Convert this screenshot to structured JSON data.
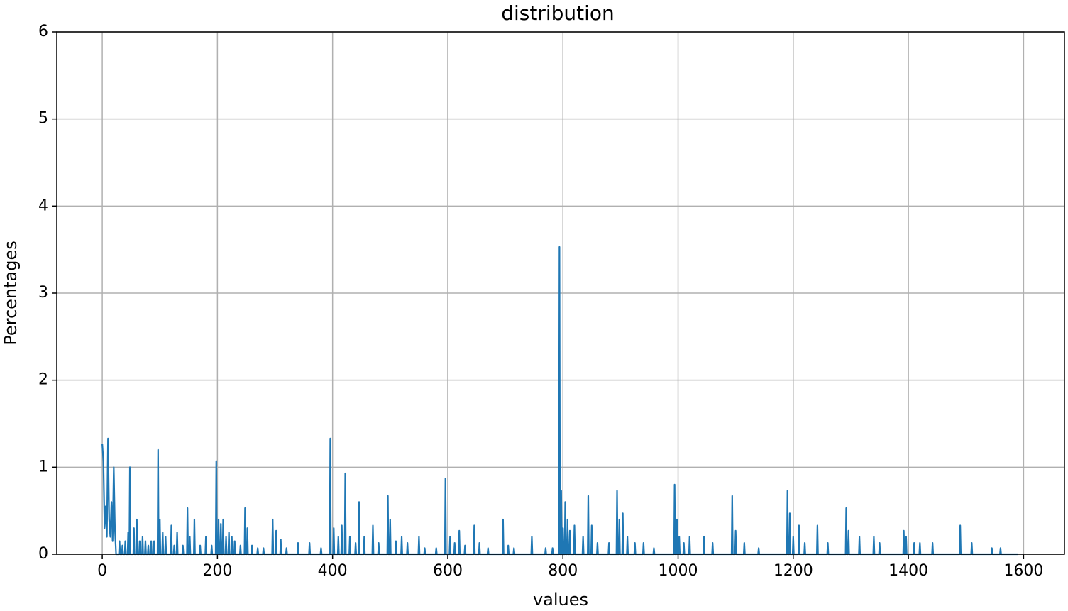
{
  "chart_data": {
    "type": "line",
    "title": "distribution",
    "x_label": "values",
    "y_label": "Percentages",
    "xlim": [
      -79,
      1671
    ],
    "ylim": [
      0,
      6
    ],
    "xticks": [
      0,
      200,
      400,
      600,
      800,
      1000,
      1200,
      1400,
      1600
    ],
    "yticks": [
      0,
      1,
      2,
      3,
      4,
      5,
      6
    ],
    "grid": true,
    "x": [
      0,
      2,
      4,
      6,
      8,
      10,
      12,
      14,
      16,
      18,
      20,
      22,
      24,
      29,
      30,
      31,
      34,
      35,
      36,
      39,
      40,
      41,
      44,
      45,
      46,
      47,
      48,
      49,
      54,
      55,
      56,
      59,
      60,
      61,
      64,
      65,
      66,
      69,
      70,
      71,
      74,
      75,
      76,
      79,
      80,
      81,
      84,
      85,
      86,
      89,
      90,
      91,
      96,
      97,
      98,
      99,
      100,
      101,
      104,
      105,
      106,
      109,
      110,
      111,
      119,
      120,
      121,
      124,
      125,
      126,
      129,
      130,
      131,
      139,
      140,
      141,
      147,
      148,
      149,
      151,
      152,
      153,
      159,
      160,
      161,
      169,
      170,
      171,
      179,
      180,
      181,
      189,
      190,
      191,
      197,
      198,
      199,
      201,
      202,
      203,
      205,
      206,
      207,
      209,
      210,
      211,
      214,
      215,
      216,
      219,
      220,
      221,
      224,
      225,
      226,
      229,
      230,
      231,
      239,
      240,
      241,
      247,
      248,
      249,
      251,
      252,
      253,
      259,
      260,
      261,
      269,
      270,
      271,
      279,
      280,
      281,
      295,
      296,
      297,
      301,
      302,
      303,
      309,
      310,
      311,
      319,
      320,
      321,
      339,
      340,
      341,
      359,
      360,
      361,
      379,
      380,
      381,
      395,
      396,
      397,
      401,
      402,
      403,
      409,
      410,
      411,
      415,
      416,
      417,
      421,
      422,
      423,
      429,
      430,
      431,
      439,
      440,
      441,
      445,
      446,
      447,
      454,
      455,
      456,
      469,
      470,
      471,
      479,
      480,
      481,
      495,
      496,
      497,
      499,
      500,
      501,
      509,
      510,
      511,
      519,
      520,
      521,
      529,
      530,
      531,
      549,
      550,
      551,
      559,
      560,
      561,
      579,
      580,
      581,
      595,
      596,
      597,
      603,
      604,
      605,
      611,
      612,
      613,
      619,
      620,
      621,
      629,
      630,
      631,
      645,
      646,
      647,
      654,
      655,
      656,
      669,
      670,
      671,
      695,
      696,
      697,
      704,
      705,
      706,
      714,
      715,
      716,
      745,
      746,
      747,
      769,
      770,
      771,
      781,
      782,
      783,
      793,
      794,
      795,
      796,
      797,
      798,
      799,
      800,
      801,
      803,
      804,
      805,
      807,
      808,
      809,
      811,
      812,
      813,
      819,
      820,
      821,
      834,
      835,
      836,
      843,
      844,
      845,
      849,
      850,
      851,
      859,
      860,
      861,
      879,
      880,
      881,
      893,
      894,
      895,
      897,
      898,
      899,
      903,
      904,
      905,
      911,
      912,
      913,
      924,
      925,
      926,
      939,
      940,
      941,
      957,
      958,
      959,
      993,
      994,
      995,
      997,
      998,
      999,
      1001,
      1002,
      1003,
      1009,
      1010,
      1011,
      1019,
      1020,
      1021,
      1044,
      1045,
      1046,
      1059,
      1060,
      1061,
      1093,
      1094,
      1095,
      1099,
      1100,
      1101,
      1114,
      1115,
      1116,
      1139,
      1140,
      1141,
      1189,
      1190,
      1191,
      1193,
      1194,
      1195,
      1199,
      1200,
      1201,
      1209,
      1210,
      1211,
      1219,
      1220,
      1221,
      1241,
      1242,
      1243,
      1259,
      1260,
      1261,
      1291,
      1292,
      1293,
      1295,
      1296,
      1297,
      1314,
      1315,
      1316,
      1339,
      1340,
      1341,
      1349,
      1350,
      1351,
      1391,
      1392,
      1393,
      1395,
      1396,
      1397,
      1409,
      1410,
      1411,
      1419,
      1420,
      1421,
      1441,
      1442,
      1443,
      1489,
      1490,
      1491,
      1509,
      1510,
      1511,
      1544,
      1545,
      1546,
      1559,
      1560,
      1561,
      1590
    ],
    "series": [
      {
        "color": "#1f77b4",
        "values": [
          1.27,
          1.07,
          0.3,
          0.55,
          0.2,
          1.33,
          0.4,
          0.2,
          0.6,
          0.15,
          1.0,
          0.3,
          0,
          0,
          0.15,
          0,
          0,
          0.1,
          0,
          0,
          0.15,
          0,
          0,
          0.25,
          0,
          0,
          1.0,
          0,
          0,
          0.3,
          0,
          0,
          0.4,
          0,
          0,
          0.15,
          0,
          0,
          0.2,
          0,
          0,
          0.15,
          0,
          0,
          0.1,
          0,
          0,
          0.15,
          0,
          0,
          0.15,
          0,
          0,
          1.2,
          0,
          0,
          0.4,
          0,
          0,
          0.25,
          0,
          0,
          0.2,
          0,
          0,
          0.33,
          0,
          0,
          0.1,
          0,
          0,
          0.25,
          0,
          0,
          0.1,
          0,
          0,
          0.53,
          0,
          0,
          0.2,
          0,
          0,
          0.4,
          0,
          0,
          0.1,
          0,
          0,
          0.2,
          0,
          0,
          0.1,
          0,
          0,
          1.07,
          0,
          0,
          0.4,
          0,
          0,
          0.35,
          0,
          0,
          0.4,
          0,
          0,
          0.2,
          0,
          0,
          0.25,
          0,
          0,
          0.2,
          0,
          0,
          0.15,
          0,
          0,
          0.1,
          0,
          0,
          0.53,
          0,
          0,
          0.3,
          0,
          0,
          0.1,
          0,
          0,
          0.07,
          0,
          0,
          0.07,
          0,
          0,
          0.4,
          0,
          0,
          0.27,
          0,
          0,
          0.17,
          0,
          0,
          0.07,
          0,
          0,
          0.13,
          0,
          0,
          0.13,
          0,
          0,
          0.07,
          0,
          0,
          1.33,
          0,
          0,
          0.3,
          0,
          0,
          0.2,
          0,
          0,
          0.33,
          0,
          0,
          0.93,
          0,
          0,
          0.2,
          0,
          0,
          0.13,
          0,
          0,
          0.6,
          0,
          0,
          0.2,
          0,
          0,
          0.33,
          0,
          0,
          0.13,
          0,
          0,
          0.67,
          0,
          0,
          0.4,
          0,
          0,
          0.15,
          0,
          0,
          0.2,
          0,
          0,
          0.13,
          0,
          0,
          0.2,
          0,
          0,
          0.07,
          0,
          0,
          0.07,
          0,
          0,
          0.87,
          0,
          0,
          0.2,
          0,
          0,
          0.13,
          0,
          0,
          0.27,
          0,
          0,
          0.1,
          0,
          0,
          0.33,
          0,
          0,
          0.13,
          0,
          0,
          0.07,
          0,
          0,
          0.4,
          0,
          0,
          0.1,
          0,
          0,
          0.07,
          0,
          0,
          0.2,
          0,
          0,
          0.07,
          0,
          0,
          0.07,
          0,
          0,
          3.53,
          0,
          0,
          0.73,
          0,
          0,
          0.3,
          0,
          0,
          0.6,
          0,
          0,
          0.4,
          0,
          0,
          0.27,
          0,
          0,
          0.33,
          0,
          0,
          0.2,
          0,
          0,
          0.67,
          0,
          0,
          0.33,
          0,
          0,
          0.13,
          0,
          0,
          0.13,
          0,
          0,
          0.73,
          0,
          0,
          0.4,
          0,
          0,
          0.47,
          0,
          0,
          0.2,
          0,
          0,
          0.13,
          0,
          0,
          0.13,
          0,
          0,
          0.07,
          0,
          0,
          0.8,
          0,
          0,
          0.4,
          0,
          0,
          0.2,
          0,
          0,
          0.13,
          0,
          0,
          0.2,
          0,
          0,
          0.2,
          0,
          0,
          0.13,
          0,
          0,
          0.67,
          0,
          0,
          0.27,
          0,
          0,
          0.13,
          0,
          0,
          0.07,
          0,
          0,
          0.73,
          0,
          0,
          0.47,
          0,
          0,
          0.2,
          0,
          0,
          0.33,
          0,
          0,
          0.13,
          0,
          0,
          0.33,
          0,
          0,
          0.13,
          0,
          0,
          0.53,
          0,
          0,
          0.27,
          0,
          0,
          0.2,
          0,
          0,
          0.2,
          0,
          0,
          0.13,
          0,
          0,
          0.27,
          0,
          0,
          0.2,
          0,
          0,
          0.13,
          0,
          0,
          0.13,
          0,
          0,
          0.13,
          0,
          0,
          0.33,
          0,
          0,
          0.13,
          0,
          0,
          0.07,
          0,
          0,
          0.07,
          0,
          0
        ]
      }
    ]
  }
}
